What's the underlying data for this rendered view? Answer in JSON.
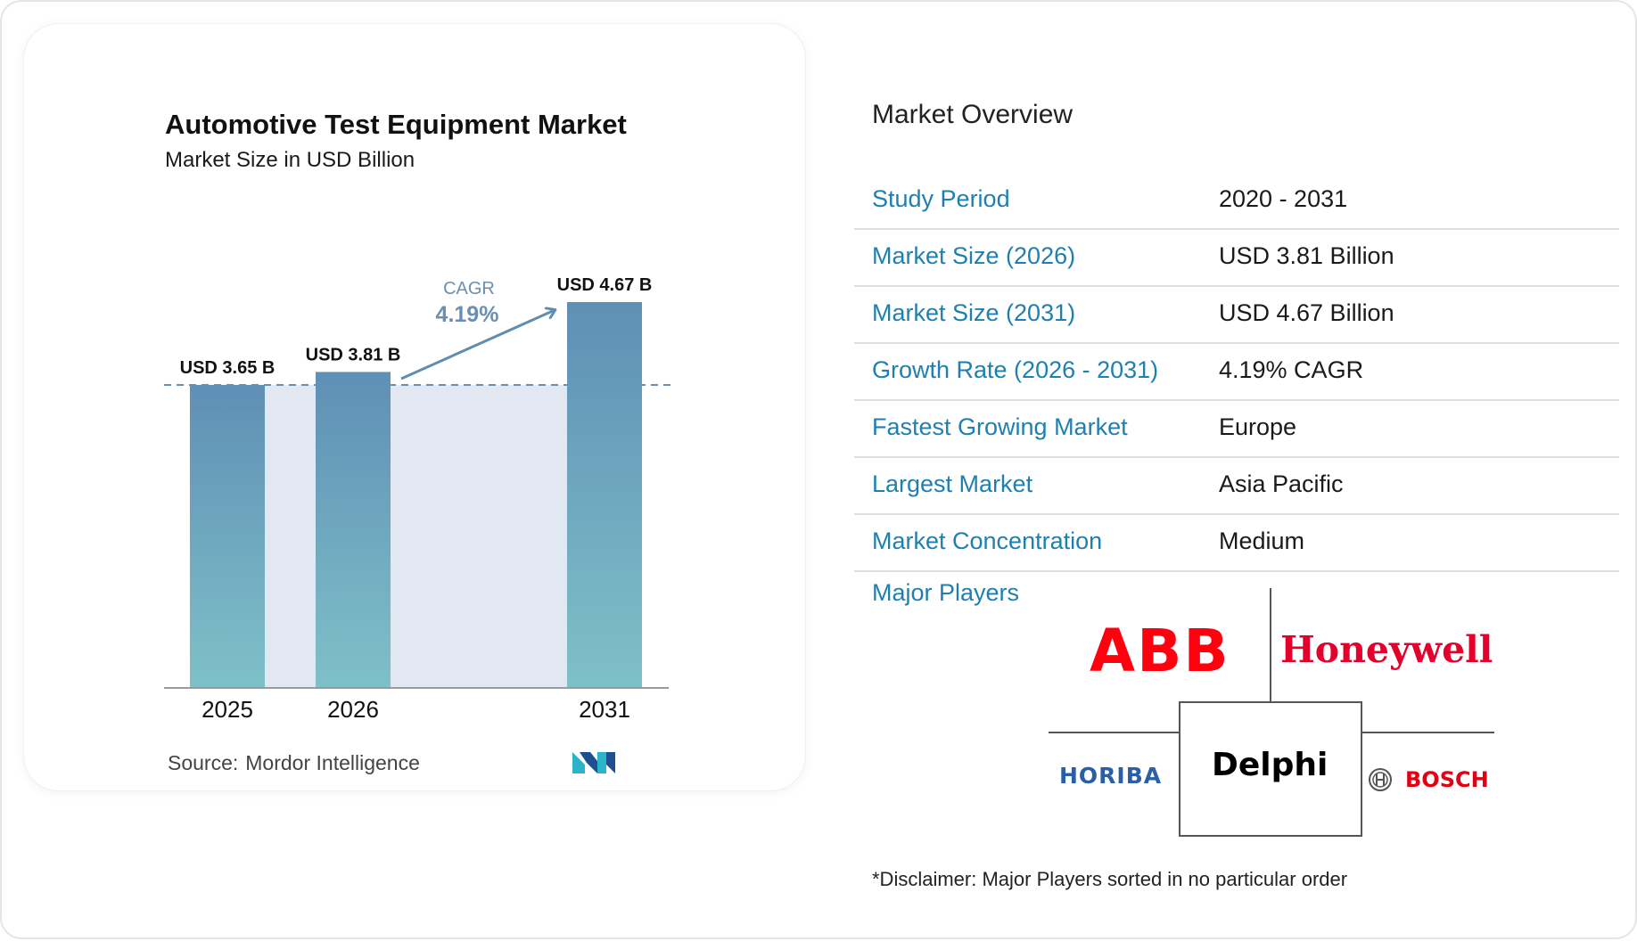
{
  "chart": {
    "title": "Automotive Test Equipment Market",
    "subtitle": "Market Size in USD Billion",
    "cagr_label": "CAGR",
    "cagr_value": "4.19%",
    "source_label": "Source:",
    "source_name": "Mordor Intelligence"
  },
  "chart_data": {
    "type": "bar",
    "categories": [
      "2025",
      "2026",
      "2031"
    ],
    "values": [
      3.65,
      3.81,
      4.67
    ],
    "data_labels": [
      "USD 3.65 B",
      "USD 3.81 B",
      "USD 4.67 B"
    ],
    "title": "Automotive Test Equipment Market",
    "subtitle": "Market Size in USD Billion",
    "ylim": [
      0,
      4.67
    ],
    "grid": false,
    "colors": {
      "bar_top": "#5f8fb5",
      "bar_bottom": "#7ec0c8",
      "band": "#e1e8f1",
      "dashed_line": "#6a8fb0",
      "arrow": "#5f8db0",
      "cagr_text": "#6b8fb0",
      "axis": "#9a9a9a"
    }
  },
  "overview": {
    "title": "Market Overview",
    "rows": [
      {
        "label": "Study Period",
        "value": "2020 - 2031"
      },
      {
        "label": "Market Size (2026)",
        "value": "USD 3.81 Billion"
      },
      {
        "label": "Market Size (2031)",
        "value": "USD 4.67 Billion"
      },
      {
        "label": "Growth Rate (2026 - 2031)",
        "value": "4.19% CAGR"
      },
      {
        "label": "Fastest Growing Market",
        "value": "Europe"
      },
      {
        "label": "Largest Market",
        "value": "Asia Pacific"
      },
      {
        "label": "Market Concentration",
        "value": "Medium"
      }
    ],
    "label_color": "#1e7fb0"
  },
  "players": {
    "label": "Major Players",
    "logos": [
      {
        "name": "ABB",
        "icon": "abb-logo",
        "color": "#ff000f"
      },
      {
        "name": "Honeywell",
        "icon": "honeywell-logo",
        "color": "#e4002b"
      },
      {
        "name": "HORIBA",
        "icon": "horiba-logo",
        "color": "#2a5fa8"
      },
      {
        "name": "Delphi",
        "icon": "delphi-logo",
        "color": "#000000"
      },
      {
        "name": "BOSCH",
        "icon": "bosch-logo",
        "color": "#e20015"
      }
    ],
    "disclaimer": "*Disclaimer: Major Players sorted in no particular order"
  }
}
